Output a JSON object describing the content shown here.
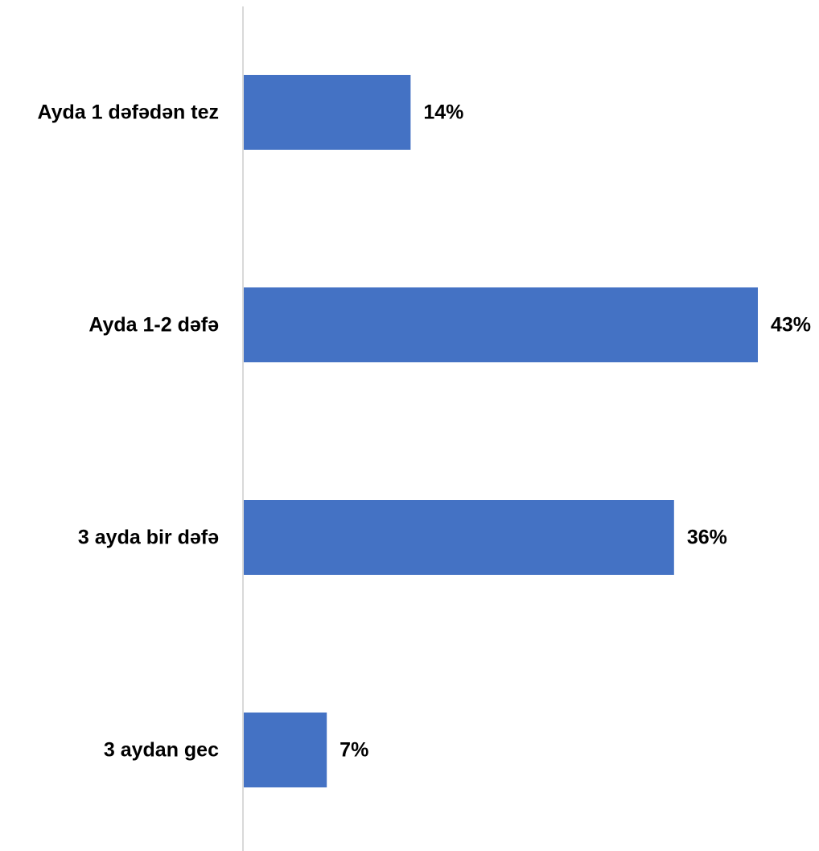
{
  "chart_data": {
    "type": "bar",
    "orientation": "horizontal",
    "categories": [
      "Ayda 1 dəfədən tez",
      "Ayda 1-2 dəfə",
      "3 ayda bir dəfə",
      "3 aydan gec"
    ],
    "values": [
      14,
      43,
      36,
      7
    ],
    "value_labels": [
      "14%",
      "43%",
      "36%",
      "7%"
    ],
    "unit": "%",
    "xlim": [
      0,
      43
    ],
    "grid": false,
    "legend": "none",
    "bar_color": "#4472C4",
    "axis_color": "#D9D9D9"
  }
}
